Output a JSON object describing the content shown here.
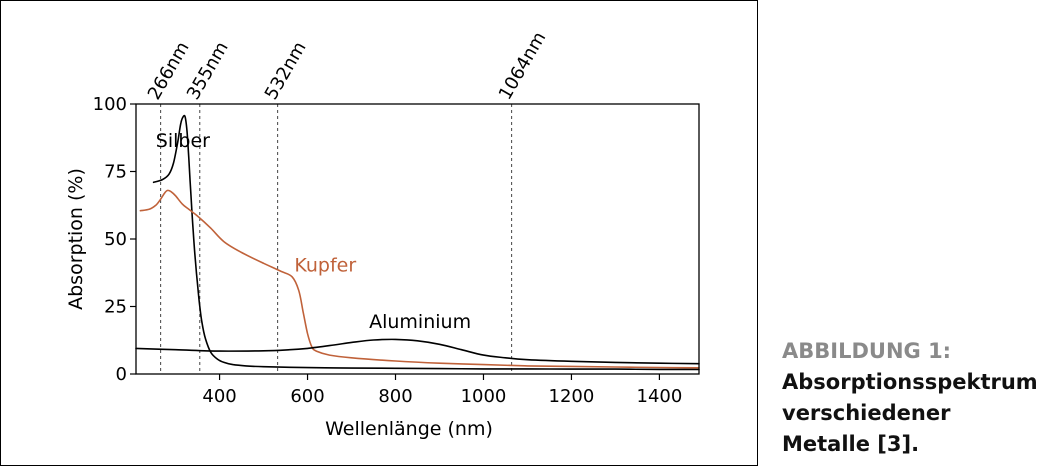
{
  "chart_data": {
    "type": "line",
    "title": "",
    "xlabel": "Wellenlänge (nm)",
    "ylabel": "Absorption (%)",
    "xlim": [
      210,
      1490
    ],
    "ylim": [
      0,
      100
    ],
    "xticks": [
      400,
      600,
      800,
      1000,
      1200,
      1400
    ],
    "yticks": [
      0,
      25,
      50,
      75,
      100
    ],
    "grid": false,
    "reference_lines": [
      {
        "x": 266,
        "label": "266nm"
      },
      {
        "x": 355,
        "label": "355nm"
      },
      {
        "x": 532,
        "label": "532nm"
      },
      {
        "x": 1064,
        "label": "1064nm"
      }
    ],
    "series": [
      {
        "name": "Silber",
        "color": "#000000",
        "label_at": [
          255,
          84
        ],
        "x": [
          250,
          270,
          285,
          295,
          305,
          312,
          318,
          322,
          326,
          330,
          335,
          340,
          345,
          350,
          355,
          360,
          368,
          380,
          395,
          410,
          430,
          460,
          500,
          560,
          640,
          700,
          800,
          900,
          1000,
          1100,
          1200,
          1300,
          1400,
          1490
        ],
        "y": [
          71,
          72,
          74,
          78,
          86,
          93,
          95.5,
          95,
          90,
          80,
          66,
          53,
          42,
          33,
          25,
          19,
          13,
          8,
          5.5,
          4.3,
          3.5,
          3,
          2.7,
          2.5,
          2.3,
          2.2,
          2.1,
          2.0,
          1.9,
          1.9,
          1.8,
          1.8,
          1.7,
          1.7
        ]
      },
      {
        "name": "Kupfer",
        "color": "#c0623a",
        "label_at": [
          570,
          38
        ],
        "x": [
          220,
          240,
          255,
          265,
          275,
          282,
          290,
          300,
          315,
          330,
          350,
          380,
          410,
          450,
          500,
          540,
          565,
          580,
          590,
          600,
          610,
          620,
          650,
          700,
          800,
          900,
          1000,
          1100,
          1200,
          1300,
          1400,
          1490
        ],
        "y": [
          60.5,
          61,
          62.5,
          64.5,
          67,
          68,
          67.5,
          66,
          63,
          61,
          58.5,
          54,
          49,
          45,
          41,
          38,
          36,
          31,
          23,
          15,
          10,
          8.5,
          7,
          6,
          4.8,
          4,
          3.5,
          3,
          2.8,
          2.6,
          2.4,
          2.3
        ]
      },
      {
        "name": "Aluminium",
        "color": "#000000",
        "label_at": [
          740,
          17
        ],
        "x": [
          210,
          300,
          400,
          500,
          560,
          600,
          650,
          700,
          750,
          800,
          850,
          900,
          950,
          1000,
          1050,
          1100,
          1200,
          1300,
          1400,
          1490
        ],
        "y": [
          9.5,
          9,
          8.5,
          8.6,
          9,
          9.5,
          10.5,
          11.7,
          12.6,
          12.8,
          12.3,
          11,
          9,
          7,
          6,
          5.3,
          4.7,
          4.3,
          4,
          3.8
        ]
      }
    ]
  },
  "caption": {
    "label": "ABBILDUNG 1:",
    "lines": [
      "Absorptionsspektrum",
      "verschiedener",
      "Metalle [3]."
    ]
  }
}
